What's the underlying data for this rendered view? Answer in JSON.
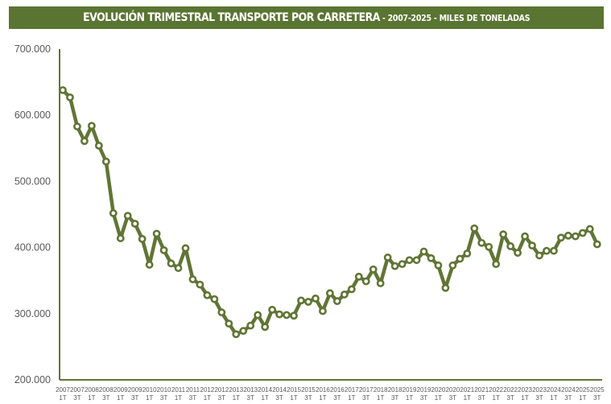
{
  "title": {
    "main": "EVOLUCIÓN TRIMESTRAL TRANSPORTE POR CARRETERA",
    "separator1": " - ",
    "years": "2007-2025",
    "separator2": " - ",
    "unit": "MILES DE TONELADAS"
  },
  "colors": {
    "title_bg": "#5a7532",
    "title_text": "#ffffff",
    "line": "#617535",
    "marker_fill": "#ffffff",
    "axis": "#617535",
    "tick_text": "#595959"
  },
  "chart_data": {
    "type": "line",
    "title": "EVOLUCIÓN TRIMESTRAL TRANSPORTE POR CARRETERA - 2007-2025 - MILES DE TONELADAS",
    "xlabel": "",
    "ylabel": "",
    "ylim": [
      200000,
      700000
    ],
    "yticks": [
      "700.000",
      "600.000",
      "500.000",
      "400.000",
      "300.000",
      "200.000"
    ],
    "ytick_values": [
      700000,
      600000,
      500000,
      400000,
      300000,
      200000
    ],
    "grid": false,
    "legend": null,
    "x_tick_labels": [
      [
        "2007",
        "1T"
      ],
      [
        "2007",
        "3T"
      ],
      [
        "2008",
        "1T"
      ],
      [
        "2008",
        "3T"
      ],
      [
        "2009",
        "1T"
      ],
      [
        "2009",
        "3T"
      ],
      [
        "2010",
        "1T"
      ],
      [
        "2010",
        "3T"
      ],
      [
        "2011",
        "1T"
      ],
      [
        "2011",
        "3T"
      ],
      [
        "2012",
        "1T"
      ],
      [
        "2012",
        "3T"
      ],
      [
        "2013",
        "1T"
      ],
      [
        "2013",
        "3T"
      ],
      [
        "2014",
        "1T"
      ],
      [
        "2014",
        "3T"
      ],
      [
        "2015",
        "1T"
      ],
      [
        "2015",
        "3T"
      ],
      [
        "2016",
        "1T"
      ],
      [
        "2016",
        "3T"
      ],
      [
        "2017",
        "1T"
      ],
      [
        "2017",
        "3T"
      ],
      [
        "2018",
        "1T"
      ],
      [
        "2018",
        "3T"
      ],
      [
        "2019",
        "1T"
      ],
      [
        "2019",
        "3T"
      ],
      [
        "2020",
        "1T"
      ],
      [
        "2020",
        "3T"
      ],
      [
        "2021",
        "1T"
      ],
      [
        "2021",
        "3T"
      ],
      [
        "2022",
        "1T"
      ],
      [
        "2022",
        "3T"
      ],
      [
        "2023",
        "1T"
      ],
      [
        "2023",
        "3T"
      ],
      [
        "2024",
        "1T"
      ],
      [
        "2024",
        "3T"
      ],
      [
        "2025",
        "1T"
      ],
      [
        "2025",
        "3T"
      ]
    ],
    "x": [
      "2007 1T",
      "2007 2T",
      "2007 3T",
      "2007 4T",
      "2008 1T",
      "2008 2T",
      "2008 3T",
      "2008 4T",
      "2009 1T",
      "2009 2T",
      "2009 3T",
      "2009 4T",
      "2010 1T",
      "2010 2T",
      "2010 3T",
      "2010 4T",
      "2011 1T",
      "2011 2T",
      "2011 3T",
      "2011 4T",
      "2012 1T",
      "2012 2T",
      "2012 3T",
      "2012 4T",
      "2013 1T",
      "2013 2T",
      "2013 3T",
      "2013 4T",
      "2014 1T",
      "2014 2T",
      "2014 3T",
      "2014 4T",
      "2015 1T",
      "2015 2T",
      "2015 3T",
      "2015 4T",
      "2016 1T",
      "2016 2T",
      "2016 3T",
      "2016 4T",
      "2017 1T",
      "2017 2T",
      "2017 3T",
      "2017 4T",
      "2018 1T",
      "2018 2T",
      "2018 3T",
      "2018 4T",
      "2019 1T",
      "2019 2T",
      "2019 3T",
      "2019 4T",
      "2020 1T",
      "2020 2T",
      "2020 3T",
      "2020 4T",
      "2021 1T",
      "2021 2T",
      "2021 3T",
      "2021 4T",
      "2022 1T",
      "2022 2T",
      "2022 3T",
      "2022 4T",
      "2023 1T",
      "2023 2T",
      "2023 3T",
      "2023 4T",
      "2024 1T",
      "2024 2T",
      "2024 3T",
      "2024 4T",
      "2025 1T",
      "2025 2T",
      "2025 3T"
    ],
    "series": [
      {
        "name": "Transporte por carretera (miles de toneladas)",
        "values": [
          638000,
          627000,
          583000,
          561000,
          584000,
          554000,
          530000,
          452000,
          414000,
          448000,
          436000,
          413000,
          374000,
          421000,
          396000,
          376000,
          369000,
          399000,
          352000,
          344000,
          328000,
          322000,
          302000,
          285000,
          269000,
          274000,
          282000,
          298000,
          280000,
          306000,
          299000,
          298000,
          297000,
          320000,
          318000,
          323000,
          304000,
          331000,
          319000,
          329000,
          337000,
          356000,
          349000,
          367000,
          346000,
          385000,
          372000,
          375000,
          381000,
          381000,
          394000,
          384000,
          373000,
          339000,
          373000,
          383000,
          391000,
          429000,
          407000,
          401000,
          375000,
          420000,
          402000,
          392000,
          417000,
          403000,
          388000,
          395000,
          395000,
          415000,
          418000,
          417000,
          422000,
          428000,
          405000
        ]
      }
    ]
  }
}
